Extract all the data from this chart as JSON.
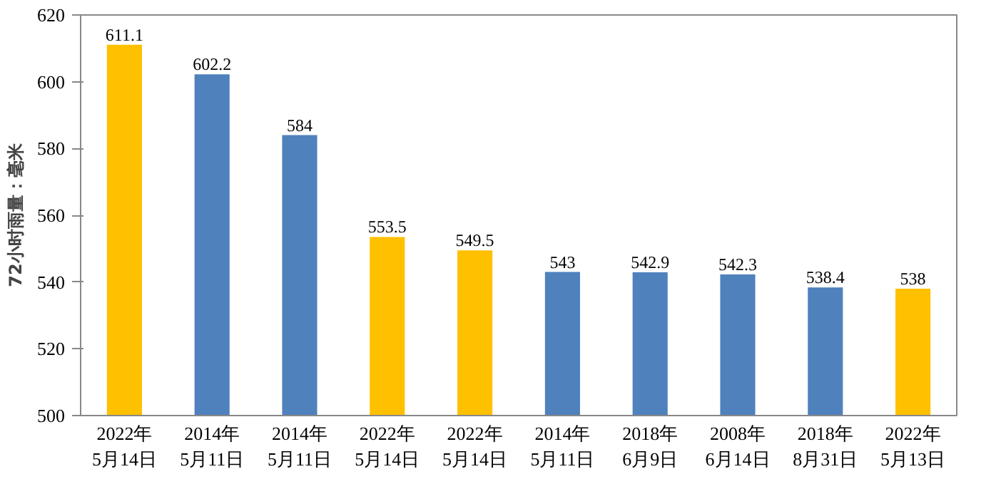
{
  "chart_data": {
    "type": "bar",
    "ylabel": "72小时雨量：毫米",
    "categories": [
      "2022年\n5月14日",
      "2014年\n5月11日",
      "2014年\n5月11日",
      "2022年\n5月14日",
      "2022年\n5月14日",
      "2014年\n5月11日",
      "2018年\n6月9日",
      "2008年\n6月14日",
      "2018年\n8月31日",
      "2022年\n5月13日"
    ],
    "values": [
      611.1,
      602.2,
      584,
      553.5,
      549.5,
      543,
      542.9,
      542.3,
      538.4,
      538
    ],
    "colors": [
      "#ffc000",
      "#4f81bd",
      "#4f81bd",
      "#ffc000",
      "#ffc000",
      "#4f81bd",
      "#4f81bd",
      "#4f81bd",
      "#4f81bd",
      "#ffc000"
    ],
    "ylim": [
      500,
      620
    ],
    "yticks": [
      500,
      520,
      540,
      560,
      580,
      600,
      620
    ],
    "grid": false,
    "data_labels": true
  }
}
